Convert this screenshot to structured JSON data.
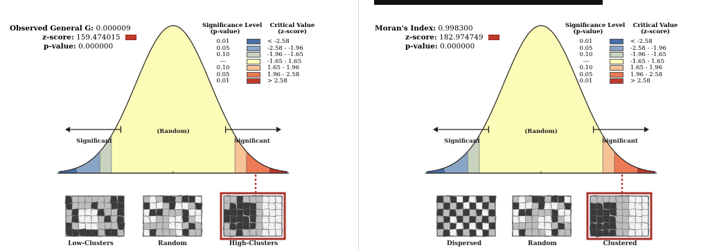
{
  "colors": {
    "neg_dark": "#4a6fa5",
    "neg_mid": "#8aa4c8",
    "neg_light": "#c8d3c0",
    "neutral": "#fdfbb8",
    "pos_light": "#f7c295",
    "pos_mid": "#ec7a55",
    "pos_dark": "#c0392b",
    "map_dark": "#3a3a3a",
    "map_grey": "#bdbdbd",
    "map_light": "#f2f2f2"
  },
  "legend": {
    "header_sig": "Significance Level",
    "header_sig_sub": "(p-value)",
    "header_crit": "Critical Value",
    "header_crit_sub": "(z-score)",
    "rows": [
      {
        "p": "0.01",
        "z": "< -2.58",
        "color": "#4a6fa5"
      },
      {
        "p": "0.05",
        "z": "-2.58 - -1.96",
        "color": "#8aa4c8"
      },
      {
        "p": "0.10",
        "z": "-1.96 - -1.65",
        "color": "#c8d3c0"
      },
      {
        "p": "---",
        "z": "-1.65 - 1.65",
        "color": "#fdfbb8"
      },
      {
        "p": "0.10",
        "z": "1.65 - 1.96",
        "color": "#f7c295"
      },
      {
        "p": "0.05",
        "z": "1.96 - 2.58",
        "color": "#ec7a55"
      },
      {
        "p": "0.01",
        "z": "> 2.58",
        "color": "#c0392b"
      }
    ]
  },
  "curve_labels": {
    "random": "(Random)",
    "significant_left": "Significant",
    "significant_right": "Significant"
  },
  "panels": [
    {
      "stat_label": "Observed General G:",
      "stat_value": "0.000009",
      "z_label": "z-score:",
      "z_value": "159.474015",
      "p_label": "p-value:",
      "p_value": "0.000000",
      "captions": [
        "Low-Clusters",
        "Random",
        "High-Clusters"
      ]
    },
    {
      "stat_label": "Moran's Index:",
      "stat_value": "0.998300",
      "z_label": "z-score:",
      "z_value": "182.974749",
      "p_label": "p-value:",
      "p_value": "0.000000",
      "captions": [
        "Dispersed",
        "Random",
        "Clustered"
      ]
    }
  ]
}
